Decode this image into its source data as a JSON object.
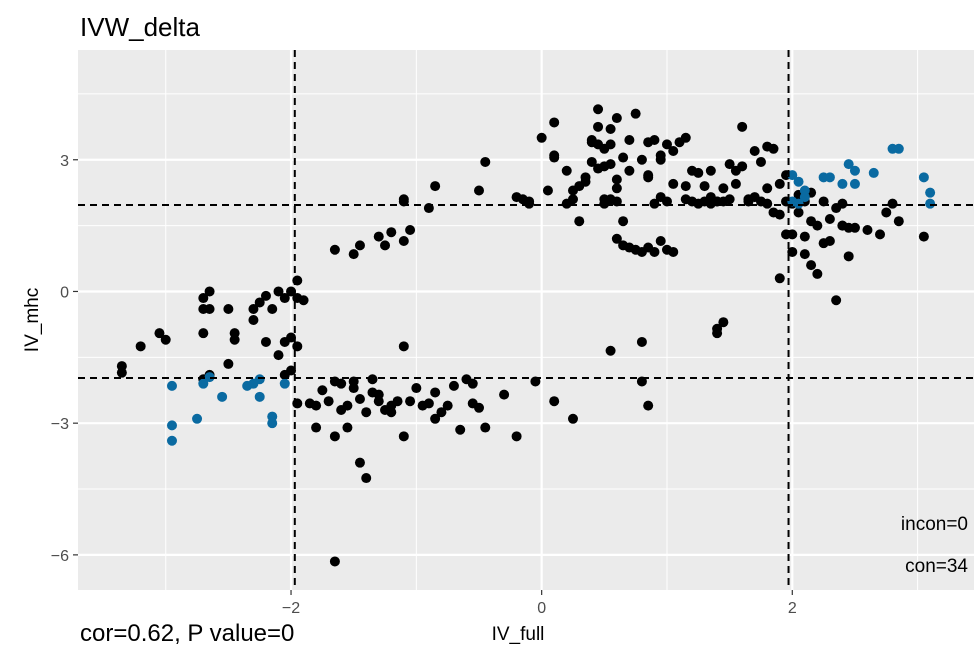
{
  "chart_data": {
    "type": "scatter",
    "title": "IVW_delta",
    "xlabel": "IV_full",
    "ylabel": "IV_mhc",
    "xlim": [
      -3.7,
      3.45
    ],
    "ylim": [
      -6.8,
      5.5
    ],
    "xticks": [
      -2,
      0,
      2
    ],
    "yticks": [
      -6,
      -3,
      0,
      3
    ],
    "xtick_labels": [
      "−2",
      "0",
      "2"
    ],
    "ytick_labels": [
      "−6",
      "−3",
      "0",
      "3"
    ],
    "grid": true,
    "threshold_lines": {
      "x": [
        -1.97,
        1.97
      ],
      "y": [
        -1.97,
        1.97
      ]
    },
    "annotations": [
      "incon=0",
      "con=34"
    ],
    "caption": "cor=0.62, P value=0",
    "colors": {
      "background": "#ebebeb",
      "grid": "#ffffff",
      "black_points": "#000000",
      "blue_points": "#0a6aa1"
    },
    "series": [
      {
        "color": "#000000",
        "points": [
          [
            -3.35,
            -1.7
          ],
          [
            -3.35,
            -1.85
          ],
          [
            -3.2,
            -1.25
          ],
          [
            -3.05,
            -0.95
          ],
          [
            -3.0,
            -1.1
          ],
          [
            -2.7,
            -0.15
          ],
          [
            -2.65,
            0.0
          ],
          [
            -2.7,
            -0.4
          ],
          [
            -2.65,
            -0.4
          ],
          [
            -2.7,
            -0.95
          ],
          [
            -2.65,
            -1.9
          ],
          [
            -2.7,
            -2.0
          ],
          [
            -2.5,
            -0.4
          ],
          [
            -2.45,
            -0.95
          ],
          [
            -2.45,
            -1.1
          ],
          [
            -2.5,
            -1.65
          ],
          [
            -2.3,
            -0.4
          ],
          [
            -2.25,
            -0.25
          ],
          [
            -2.2,
            -0.1
          ],
          [
            -2.15,
            -0.4
          ],
          [
            -2.1,
            0.0
          ],
          [
            -2.05,
            -0.15
          ],
          [
            -2.0,
            0.0
          ],
          [
            -2.3,
            -0.65
          ],
          [
            -2.2,
            -1.15
          ],
          [
            -2.1,
            -1.45
          ],
          [
            -2.05,
            -1.15
          ],
          [
            -2.05,
            -1.9
          ],
          [
            -2.0,
            -1.05
          ],
          [
            -1.95,
            -0.15
          ],
          [
            -1.95,
            0.25
          ],
          [
            -1.9,
            -0.2
          ],
          [
            -1.95,
            -1.25
          ],
          [
            -2.0,
            -1.8
          ],
          [
            -1.95,
            -2.55
          ],
          [
            -1.85,
            -2.55
          ],
          [
            -1.8,
            -2.6
          ],
          [
            -1.65,
            0.95
          ],
          [
            -1.5,
            0.85
          ],
          [
            -1.45,
            1.05
          ],
          [
            -1.3,
            1.25
          ],
          [
            -1.25,
            1.05
          ],
          [
            -1.2,
            1.35
          ],
          [
            -1.1,
            1.15
          ],
          [
            -1.1,
            2.05
          ],
          [
            -1.05,
            1.4
          ],
          [
            -1.1,
            2.1
          ],
          [
            -0.9,
            1.9
          ],
          [
            -0.85,
            2.4
          ],
          [
            -0.5,
            2.3
          ],
          [
            -0.45,
            2.95
          ],
          [
            -0.2,
            2.15
          ],
          [
            -0.15,
            2.1
          ],
          [
            -0.1,
            2.05
          ],
          [
            -0.1,
            2.0
          ],
          [
            0.0,
            3.5
          ],
          [
            0.1,
            3.85
          ],
          [
            0.1,
            3.1
          ],
          [
            0.1,
            3.05
          ],
          [
            0.05,
            2.3
          ],
          [
            0.2,
            2.75
          ],
          [
            0.2,
            2.0
          ],
          [
            0.25,
            2.1
          ],
          [
            0.25,
            2.3
          ],
          [
            0.3,
            2.4
          ],
          [
            0.3,
            1.6
          ],
          [
            0.35,
            2.6
          ],
          [
            0.4,
            3.45
          ],
          [
            0.4,
            3.4
          ],
          [
            0.45,
            4.15
          ],
          [
            0.45,
            2.8
          ],
          [
            0.45,
            3.75
          ],
          [
            0.5,
            2.85
          ],
          [
            0.5,
            3.25
          ],
          [
            0.55,
            3.35
          ],
          [
            0.55,
            3.7
          ],
          [
            0.55,
            2.1
          ],
          [
            0.6,
            3.95
          ],
          [
            0.6,
            2.35
          ],
          [
            0.6,
            2.05
          ],
          [
            0.5,
            2.0
          ],
          [
            0.6,
            2.55
          ],
          [
            0.65,
            1.6
          ],
          [
            0.7,
            2.75
          ],
          [
            0.65,
            3.05
          ],
          [
            0.7,
            3.45
          ],
          [
            0.75,
            4.05
          ],
          [
            0.8,
            3.0
          ],
          [
            0.85,
            3.4
          ],
          [
            0.85,
            2.65
          ],
          [
            0.85,
            2.6
          ],
          [
            0.9,
            3.45
          ],
          [
            0.9,
            2.0
          ],
          [
            0.95,
            3.0
          ],
          [
            1.0,
            3.35
          ],
          [
            0.95,
            3.1
          ],
          [
            1.05,
            3.2
          ],
          [
            1.05,
            2.45
          ],
          [
            1.1,
            3.4
          ],
          [
            1.15,
            3.5
          ],
          [
            1.15,
            2.4
          ],
          [
            1.2,
            2.75
          ],
          [
            1.25,
            2.7
          ],
          [
            1.3,
            2.05
          ],
          [
            1.25,
            2.0
          ],
          [
            1.35,
            2.0
          ],
          [
            1.4,
            2.05
          ],
          [
            1.3,
            2.4
          ],
          [
            1.35,
            2.75
          ],
          [
            1.45,
            2.05
          ],
          [
            1.5,
            2.1
          ],
          [
            1.5,
            2.9
          ],
          [
            1.55,
            2.75
          ],
          [
            1.6,
            3.75
          ],
          [
            1.6,
            2.85
          ],
          [
            1.65,
            2.05
          ],
          [
            1.7,
            3.2
          ],
          [
            1.75,
            2.95
          ],
          [
            1.8,
            3.3
          ],
          [
            1.8,
            2.35
          ],
          [
            1.85,
            3.25
          ],
          [
            1.9,
            2.45
          ],
          [
            1.95,
            2.65
          ],
          [
            1.95,
            2.05
          ],
          [
            2.0,
            2.0
          ],
          [
            2.05,
            2.2
          ],
          [
            2.1,
            2.05
          ],
          [
            2.15,
            2.25
          ],
          [
            2.25,
            2.05
          ],
          [
            2.3,
            1.65
          ],
          [
            2.35,
            1.9
          ],
          [
            2.4,
            1.5
          ],
          [
            2.45,
            1.45
          ],
          [
            2.5,
            1.45
          ],
          [
            2.4,
            2.0
          ],
          [
            2.6,
            1.4
          ],
          [
            2.7,
            1.3
          ],
          [
            2.75,
            1.8
          ],
          [
            2.8,
            2.0
          ],
          [
            2.85,
            1.6
          ],
          [
            3.05,
            1.25
          ],
          [
            1.75,
            2.05
          ],
          [
            1.8,
            2.0
          ],
          [
            1.85,
            1.8
          ],
          [
            1.9,
            1.75
          ],
          [
            1.95,
            1.3
          ],
          [
            2.0,
            0.9
          ],
          [
            2.1,
            0.85
          ],
          [
            2.15,
            1.6
          ],
          [
            2.2,
            1.5
          ],
          [
            2.25,
            1.1
          ],
          [
            2.3,
            1.15
          ],
          [
            2.4,
            1.5
          ],
          [
            2.45,
            0.8
          ],
          [
            2.2,
            0.4
          ],
          [
            2.35,
            -0.2
          ],
          [
            2.15,
            0.6
          ],
          [
            1.9,
            0.3
          ],
          [
            2.0,
            1.3
          ],
          [
            2.05,
            1.8
          ],
          [
            2.1,
            1.25
          ],
          [
            1.0,
            2.05
          ],
          [
            0.95,
            2.15
          ],
          [
            1.15,
            2.1
          ],
          [
            1.2,
            2.05
          ],
          [
            1.35,
            2.15
          ],
          [
            1.4,
            2.05
          ],
          [
            1.45,
            2.35
          ],
          [
            1.55,
            2.45
          ],
          [
            1.65,
            2.1
          ],
          [
            1.7,
            2.15
          ],
          [
            0.35,
            2.5
          ],
          [
            0.4,
            2.95
          ],
          [
            0.45,
            3.35
          ],
          [
            0.5,
            2.1
          ],
          [
            0.55,
            2.9
          ],
          [
            0.6,
            1.2
          ],
          [
            0.65,
            1.05
          ],
          [
            0.7,
            1.0
          ],
          [
            0.75,
            0.95
          ],
          [
            0.8,
            0.9
          ],
          [
            0.85,
            1.0
          ],
          [
            0.9,
            0.9
          ],
          [
            0.95,
            1.15
          ],
          [
            1.0,
            0.95
          ],
          [
            1.05,
            0.9
          ],
          [
            1.4,
            -0.85
          ],
          [
            1.4,
            -0.95
          ],
          [
            1.45,
            -0.7
          ],
          [
            0.55,
            -1.35
          ],
          [
            0.8,
            -1.15
          ],
          [
            0.8,
            -2.05
          ],
          [
            0.85,
            -2.6
          ],
          [
            0.25,
            -2.9
          ],
          [
            -0.05,
            -2.05
          ],
          [
            0.1,
            -2.5
          ],
          [
            -0.2,
            -3.3
          ],
          [
            -0.3,
            -2.35
          ],
          [
            -0.45,
            -3.1
          ],
          [
            -0.5,
            -2.65
          ],
          [
            -0.6,
            -2.0
          ],
          [
            -0.65,
            -3.15
          ],
          [
            -0.55,
            -2.1
          ],
          [
            -0.7,
            -2.15
          ],
          [
            -0.75,
            -2.6
          ],
          [
            -0.8,
            -2.75
          ],
          [
            -0.85,
            -2.3
          ],
          [
            -0.9,
            -2.55
          ],
          [
            -1.1,
            -1.25
          ],
          [
            -1.1,
            -3.3
          ],
          [
            -1.2,
            -2.6
          ],
          [
            -1.25,
            -2.7
          ],
          [
            -1.3,
            -2.5
          ],
          [
            -1.3,
            -2.35
          ],
          [
            -1.35,
            -2.0
          ],
          [
            -1.35,
            -2.3
          ],
          [
            -1.4,
            -2.75
          ],
          [
            -1.4,
            -4.25
          ],
          [
            -1.45,
            -3.9
          ],
          [
            -1.45,
            -2.45
          ],
          [
            -1.5,
            -2.05
          ],
          [
            -1.5,
            -2.2
          ],
          [
            -1.55,
            -2.6
          ],
          [
            -1.55,
            -3.1
          ],
          [
            -1.6,
            -2.1
          ],
          [
            -1.6,
            -2.7
          ],
          [
            -1.65,
            -2.05
          ],
          [
            -1.65,
            -3.3
          ],
          [
            -1.7,
            -2.5
          ],
          [
            -1.75,
            -2.25
          ],
          [
            -1.8,
            -3.1
          ],
          [
            -1.65,
            -6.15
          ],
          [
            -1.2,
            -2.75
          ],
          [
            -1.15,
            -2.5
          ],
          [
            -1.0,
            -2.2
          ],
          [
            -0.85,
            -2.9
          ],
          [
            -0.55,
            -2.55
          ],
          [
            -0.95,
            -2.6
          ],
          [
            -1.05,
            -2.5
          ]
        ]
      },
      {
        "color": "#0a6aa1",
        "points": [
          [
            -2.95,
            -2.15
          ],
          [
            -2.95,
            -3.05
          ],
          [
            -2.95,
            -3.4
          ],
          [
            -2.75,
            -2.9
          ],
          [
            -2.7,
            -2.1
          ],
          [
            -2.65,
            -1.95
          ],
          [
            -2.55,
            -2.4
          ],
          [
            -2.35,
            -2.15
          ],
          [
            -2.3,
            -2.1
          ],
          [
            -2.25,
            -2.0
          ],
          [
            -2.25,
            -2.4
          ],
          [
            -2.15,
            -2.85
          ],
          [
            -2.15,
            -3.0
          ],
          [
            -2.05,
            -2.1
          ],
          [
            2.0,
            2.65
          ],
          [
            2.05,
            2.5
          ],
          [
            2.1,
            2.3
          ],
          [
            2.1,
            2.15
          ],
          [
            2.0,
            2.05
          ],
          [
            2.05,
            2.0
          ],
          [
            2.25,
            2.6
          ],
          [
            2.3,
            2.6
          ],
          [
            2.4,
            2.45
          ],
          [
            2.5,
            2.45
          ],
          [
            2.45,
            2.9
          ],
          [
            2.5,
            2.75
          ],
          [
            2.65,
            2.7
          ],
          [
            2.8,
            3.25
          ],
          [
            2.85,
            3.25
          ],
          [
            3.05,
            2.6
          ],
          [
            3.1,
            2.25
          ],
          [
            3.1,
            2.0
          ]
        ]
      }
    ]
  }
}
